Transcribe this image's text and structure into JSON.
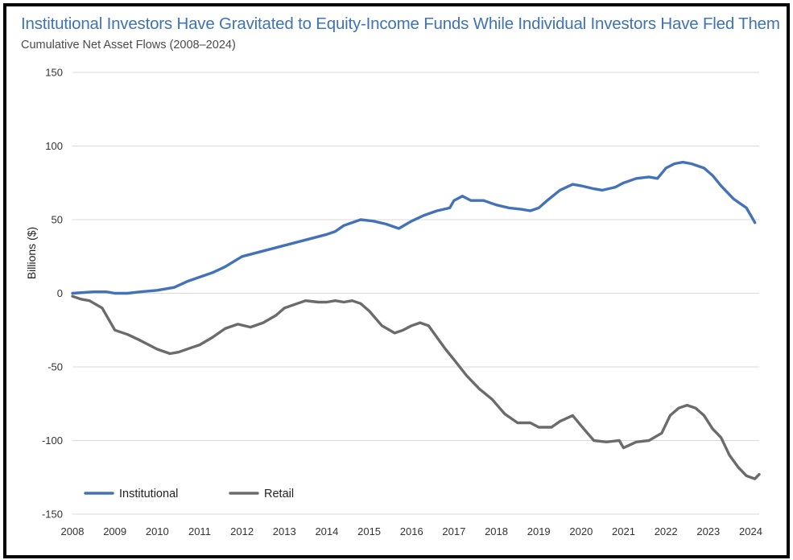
{
  "title": "Institutional Investors Have Gravitated to Equity-Income Funds While Individual Investors Have Fled Them",
  "subtitle": "Cumulative Net Asset Flows (2008–2024)",
  "colors": {
    "institutional": "#4472b8",
    "retail": "#6b6b6b",
    "title": "#3e73b5"
  },
  "chart_data": {
    "type": "line",
    "title": "Institutional Investors Have Gravitated to Equity-Income Funds While Individual Investors Have Fled Them",
    "subtitle": "Cumulative Net Asset Flows (2008–2024)",
    "xlabel": "",
    "ylabel": "Billions ($)",
    "x_ticks": [
      "2008",
      "2009",
      "2010",
      "2011",
      "2012",
      "2013",
      "2014",
      "2015",
      "2016",
      "2017",
      "2018",
      "2019",
      "2020",
      "2021",
      "2022",
      "2023",
      "2024"
    ],
    "y_ticks": [
      150,
      100,
      50,
      0,
      -50,
      -100,
      -150
    ],
    "xlim": [
      2008.0,
      2024.2
    ],
    "ylim": [
      -150,
      150
    ],
    "grid": true,
    "legend_position": "bottom-left",
    "series": [
      {
        "name": "Institutional",
        "color": "#4472b8",
        "x": [
          2008.0,
          2008.5,
          2008.8,
          2009.0,
          2009.3,
          2009.6,
          2010.0,
          2010.4,
          2010.7,
          2011.0,
          2011.3,
          2011.6,
          2012.0,
          2012.4,
          2012.8,
          2013.2,
          2013.6,
          2014.0,
          2014.2,
          2014.4,
          2014.8,
          2015.1,
          2015.4,
          2015.7,
          2016.0,
          2016.3,
          2016.6,
          2016.9,
          2017.0,
          2017.2,
          2017.4,
          2017.7,
          2018.0,
          2018.3,
          2018.6,
          2018.8,
          2019.0,
          2019.2,
          2019.5,
          2019.8,
          2020.0,
          2020.3,
          2020.5,
          2020.8,
          2021.0,
          2021.3,
          2021.6,
          2021.8,
          2022.0,
          2022.2,
          2022.4,
          2022.6,
          2022.9,
          2023.1,
          2023.3,
          2023.6,
          2023.9,
          2024.1
        ],
        "values": [
          0,
          1,
          1,
          0,
          0,
          1,
          2,
          4,
          8,
          11,
          14,
          18,
          25,
          28,
          31,
          34,
          37,
          40,
          42,
          46,
          50,
          49,
          47,
          44,
          49,
          53,
          56,
          58,
          63,
          66,
          63,
          63,
          60,
          58,
          57,
          56,
          58,
          63,
          70,
          74,
          73,
          71,
          70,
          72,
          75,
          78,
          79,
          78,
          85,
          88,
          89,
          88,
          85,
          80,
          73,
          64,
          58,
          48
        ]
      },
      {
        "name": "Retail",
        "color": "#6b6b6b",
        "x": [
          2008.0,
          2008.2,
          2008.4,
          2008.7,
          2009.0,
          2009.3,
          2009.6,
          2010.0,
          2010.3,
          2010.5,
          2010.8,
          2011.0,
          2011.3,
          2011.6,
          2011.9,
          2012.2,
          2012.5,
          2012.8,
          2013.0,
          2013.3,
          2013.5,
          2013.8,
          2014.0,
          2014.2,
          2014.4,
          2014.6,
          2014.8,
          2015.0,
          2015.3,
          2015.6,
          2015.8,
          2016.0,
          2016.2,
          2016.4,
          2016.6,
          2016.8,
          2017.0,
          2017.3,
          2017.6,
          2017.9,
          2018.2,
          2018.5,
          2018.8,
          2019.0,
          2019.3,
          2019.5,
          2019.8,
          2020.0,
          2020.3,
          2020.6,
          2020.9,
          2021.0,
          2021.3,
          2021.6,
          2021.9,
          2022.1,
          2022.3,
          2022.5,
          2022.7,
          2022.9,
          2023.1,
          2023.3,
          2023.5,
          2023.7,
          2023.9,
          2024.1,
          2024.2
        ],
        "values": [
          -2,
          -4,
          -5,
          -10,
          -25,
          -28,
          -32,
          -38,
          -41,
          -40,
          -37,
          -35,
          -30,
          -24,
          -21,
          -23,
          -20,
          -15,
          -10,
          -7,
          -5,
          -6,
          -6,
          -5,
          -6,
          -5,
          -7,
          -12,
          -22,
          -27,
          -25,
          -22,
          -20,
          -22,
          -30,
          -38,
          -45,
          -56,
          -65,
          -72,
          -82,
          -88,
          -88,
          -91,
          -91,
          -87,
          -83,
          -90,
          -100,
          -101,
          -100,
          -105,
          -101,
          -100,
          -95,
          -83,
          -78,
          -76,
          -78,
          -83,
          -92,
          -98,
          -110,
          -118,
          -124,
          -126,
          -123
        ]
      }
    ]
  }
}
